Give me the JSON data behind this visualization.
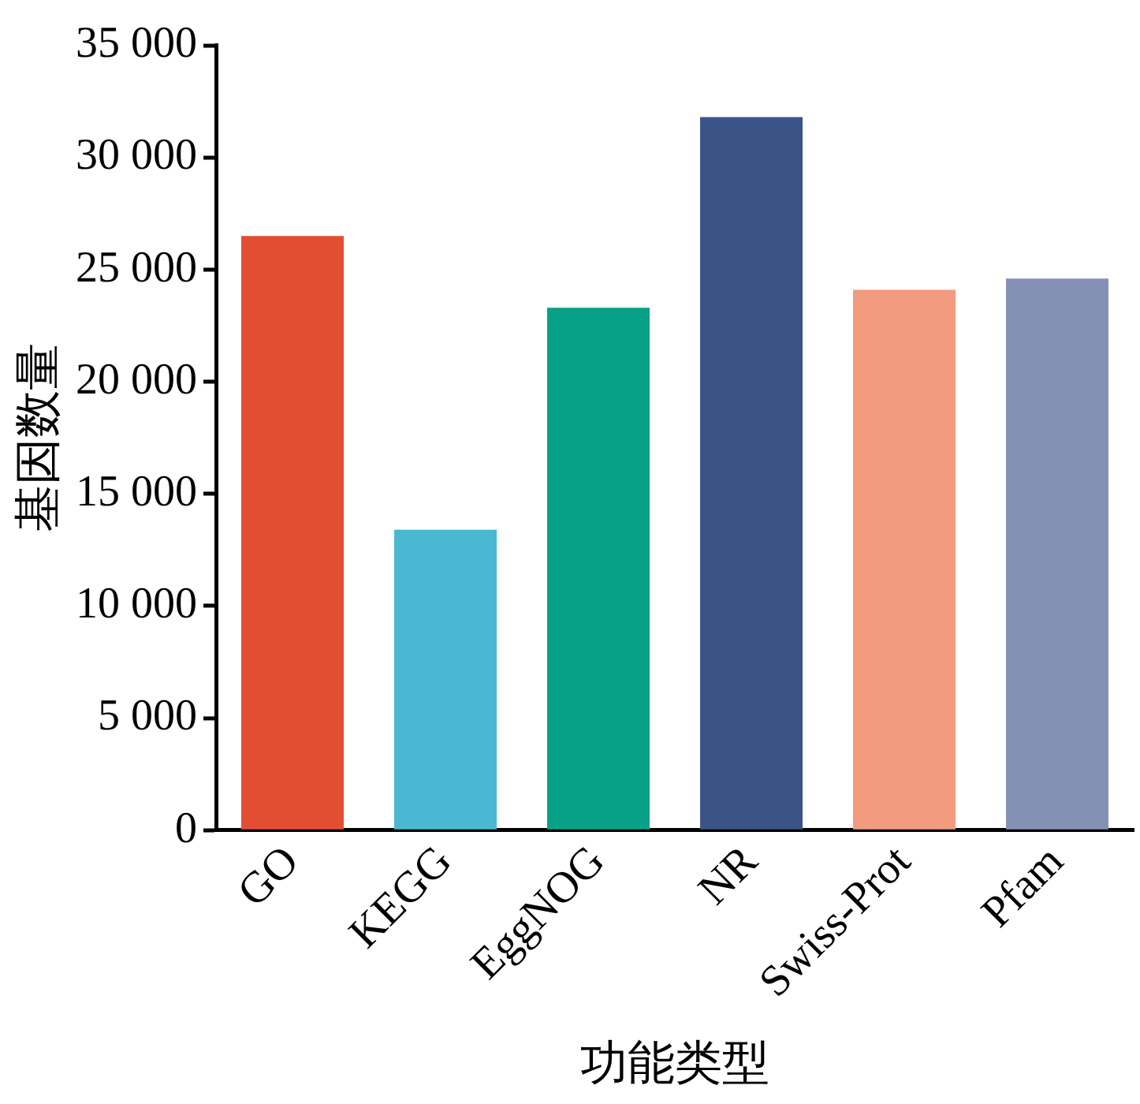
{
  "chart_data": {
    "type": "bar",
    "xlabel": "功能类型",
    "ylabel": "基因数量",
    "categories": [
      "GO",
      "KEGG",
      "EggNOG",
      "NR",
      "Swiss-Prot",
      "Pfam"
    ],
    "values": [
      26500,
      13400,
      23300,
      31800,
      24100,
      24600
    ],
    "colors": [
      "#e34e33",
      "#4ab8d3",
      "#08a086",
      "#3b5487",
      "#f39b7f",
      "#8491b4"
    ],
    "ylim": [
      0,
      35000
    ],
    "yticks": [
      {
        "value": 0,
        "label": "0"
      },
      {
        "value": 5000,
        "label": "5 000"
      },
      {
        "value": 10000,
        "label": "10 000"
      },
      {
        "value": 15000,
        "label": "15 000"
      },
      {
        "value": 20000,
        "label": "20 000"
      },
      {
        "value": 25000,
        "label": "25 000"
      },
      {
        "value": 30000,
        "label": "30 000"
      },
      {
        "value": 35000,
        "label": "35 000"
      }
    ],
    "grid": false,
    "legend": false
  }
}
